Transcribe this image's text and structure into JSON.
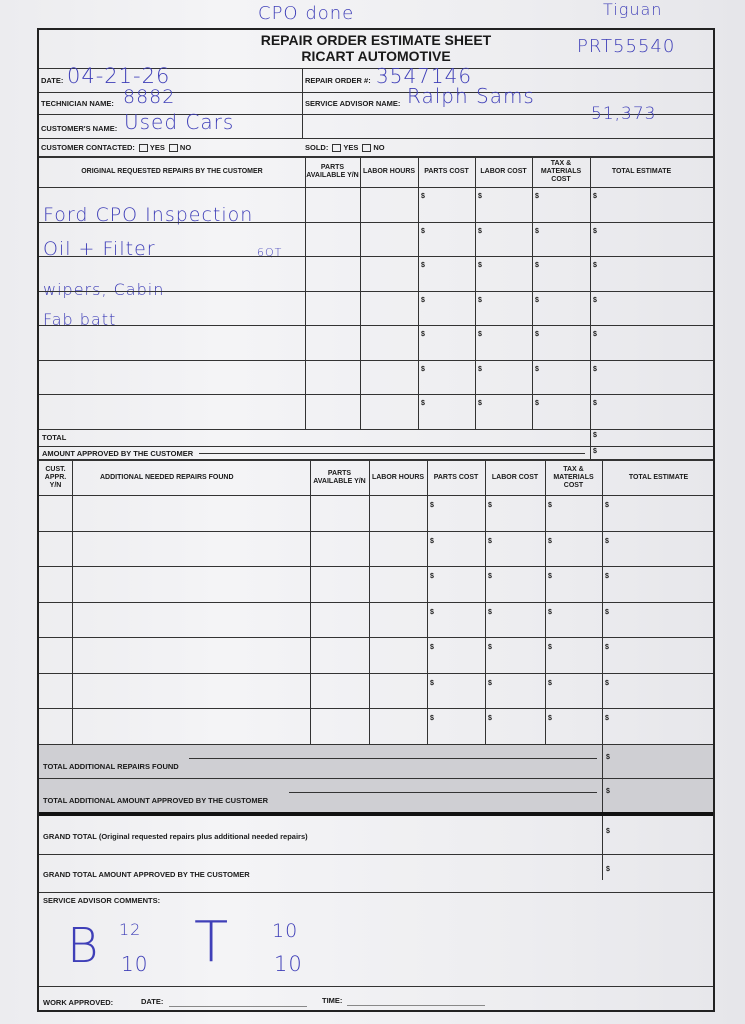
{
  "annotations": {
    "top_note": "CPO done",
    "vehicle": "Tiguan",
    "stock": "PRT55540",
    "mileage": "51,373"
  },
  "header": {
    "title": "REPAIR ORDER ESTIMATE SHEET",
    "subtitle": "RICART AUTOMOTIVE"
  },
  "fields": {
    "date_label": "DATE:",
    "date": "04-21-26",
    "repair_order_label": "REPAIR ORDER #:",
    "repair_order": "3547146",
    "technician_label": "TECHNICIAN NAME:",
    "technician": "8882",
    "advisor_label": "SERVICE ADVISOR NAME:",
    "advisor": "Ralph Sams",
    "customer_label": "CUSTOMER'S NAME:",
    "customer": "Used Cars",
    "contacted_label": "CUSTOMER CONTACTED:",
    "sold_label": "SOLD:",
    "yes": "YES",
    "no": "NO"
  },
  "original_table": {
    "headers": [
      "ORIGINAL REQUESTED REPAIRS BY THE CUSTOMER",
      "PARTS AVAILABLE Y/N",
      "LABOR HOURS",
      "PARTS COST",
      "LABOR COST",
      "TAX & MATERIALS COST",
      "TOTAL ESTIMATE"
    ],
    "handwritten_lines": [
      "Ford CPO Inspection",
      "Oil + Filter",
      "6QT",
      "wipers, Cabin",
      "Fab batt"
    ],
    "row_count": 7,
    "currency": "$",
    "total_label": "TOTAL",
    "approved_label": "AMOUNT APPROVED BY THE CUSTOMER"
  },
  "additional_table": {
    "headers": [
      "CUST. APPR. Y/N",
      "ADDITIONAL NEEDED REPAIRS FOUND",
      "PARTS AVAILABLE Y/N",
      "LABOR HOURS",
      "PARTS COST",
      "LABOR COST",
      "TAX & MATERIALS COST",
      "TOTAL ESTIMATE"
    ],
    "row_count": 7,
    "total_found_label": "TOTAL ADDITIONAL REPAIRS FOUND",
    "total_approved_label": "TOTAL ADDITIONAL AMOUNT APPROVED BY THE CUSTOMER"
  },
  "grand": {
    "grand_total_label": "GRAND TOTAL (Original requested repairs plus additional needed repairs)",
    "grand_approved_label": "GRAND TOTAL AMOUNT APPROVED BY THE CUSTOMER"
  },
  "comments": {
    "label": "SERVICE ADVISOR COMMENTS:",
    "b": "B",
    "b_top": "12",
    "b_bottom": "10",
    "t": "T",
    "t_top": "10",
    "t_bottom": "10"
  },
  "footer": {
    "work_approved": "WORK APPROVED:",
    "date": "DATE:",
    "time": "TIME:"
  }
}
